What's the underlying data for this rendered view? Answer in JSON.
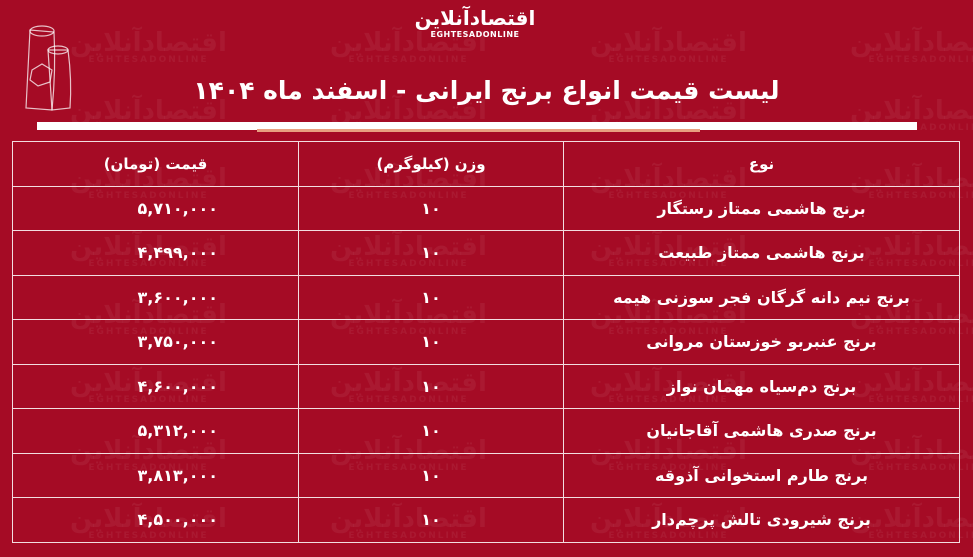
{
  "brand": {
    "logo_fa": "اقتصادآنلاین",
    "logo_en": "EGHTESADONLINE"
  },
  "title": "لیست قیمت انواع برنج ایرانی - اسفند ماه ۱۴۰۴",
  "colors": {
    "background": "#a50b25",
    "text": "#ffffff",
    "accent_line": "#e8a080"
  },
  "table": {
    "headers": {
      "type": "نوع",
      "weight": "وزن (کیلوگرم)",
      "price": "قیمت (تومان)"
    },
    "rows": [
      {
        "type": "برنج هاشمی ممتاز رستگار",
        "weight": "۱۰",
        "price": "۵,۷۱۰,۰۰۰"
      },
      {
        "type": "برنج هاشمی ممتاز طبیعت",
        "weight": "۱۰",
        "price": "۴,۴۹۹,۰۰۰"
      },
      {
        "type": "برنج نیم دانه گرگان فجر سوزنی هیمه",
        "weight": "۱۰",
        "price": "۳,۶۰۰,۰۰۰"
      },
      {
        "type": "برنج عنبربو خوزستان مروانی",
        "weight": "۱۰",
        "price": "۳,۷۵۰,۰۰۰"
      },
      {
        "type": "برنج دم‌سیاه مهمان نواز",
        "weight": "۱۰",
        "price": "۴,۶۰۰,۰۰۰"
      },
      {
        "type": "برنج صدری هاشمی آقاجانیان",
        "weight": "۱۰",
        "price": "۵,۳۱۲,۰۰۰"
      },
      {
        "type": "برنج طارم استخوانی آذوقه",
        "weight": "۱۰",
        "price": "۳,۸۱۳,۰۰۰"
      },
      {
        "type": "برنج شیرودی تالش پرچم‌دار",
        "weight": "۱۰",
        "price": "۴,۵۰۰,۰۰۰"
      }
    ]
  }
}
